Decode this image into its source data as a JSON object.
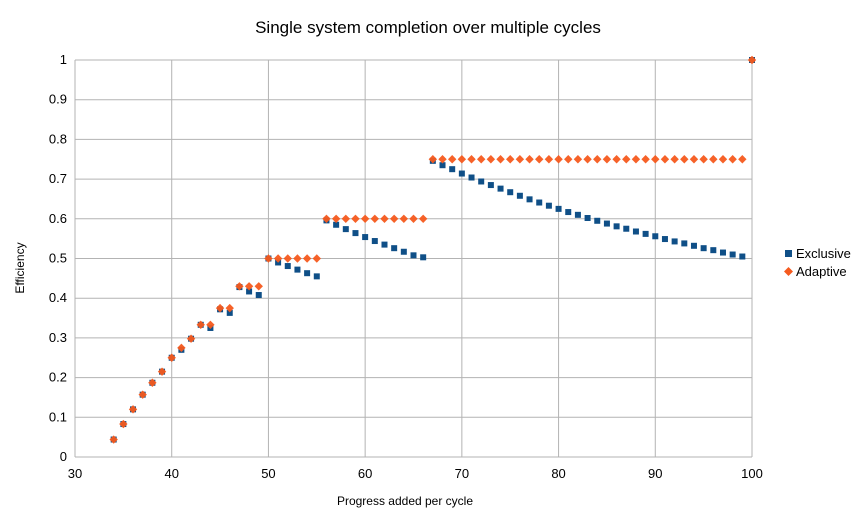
{
  "chart_data": {
    "type": "scatter",
    "title": "Single system completion over multiple cycles",
    "xlabel": "Progress added per cycle",
    "ylabel": "Efficiency",
    "xlim": [
      30,
      100
    ],
    "ylim": [
      0,
      1
    ],
    "xticks": [
      "30",
      "40",
      "50",
      "60",
      "70",
      "80",
      "90",
      "100"
    ],
    "yticks": [
      "0",
      "0.1",
      "0.2",
      "0.3",
      "0.4",
      "0.5",
      "0.6",
      "0.7",
      "0.8",
      "0.9",
      "1"
    ],
    "grid": true,
    "legend_position": "right",
    "series": [
      {
        "name": "Exclusive",
        "color": "#0f4f87",
        "marker": "square",
        "x": [
          34,
          35,
          36,
          37,
          38,
          39,
          40,
          41,
          42,
          43,
          44,
          45,
          46,
          47,
          48,
          49,
          50,
          51,
          52,
          53,
          54,
          55,
          56,
          57,
          58,
          59,
          60,
          61,
          62,
          63,
          64,
          65,
          66,
          67,
          68,
          69,
          70,
          71,
          72,
          73,
          74,
          75,
          76,
          77,
          78,
          79,
          80,
          81,
          82,
          83,
          84,
          85,
          86,
          87,
          88,
          89,
          90,
          91,
          92,
          93,
          94,
          95,
          96,
          97,
          98,
          99,
          100
        ],
        "y": [
          0.044,
          0.083,
          0.12,
          0.157,
          0.187,
          0.215,
          0.25,
          0.27,
          0.298,
          0.333,
          0.325,
          0.372,
          0.363,
          0.428,
          0.417,
          0.408,
          0.5,
          0.49,
          0.481,
          0.472,
          0.463,
          0.455,
          0.596,
          0.585,
          0.574,
          0.564,
          0.554,
          0.544,
          0.535,
          0.526,
          0.517,
          0.508,
          0.503,
          0.746,
          0.735,
          0.725,
          0.714,
          0.704,
          0.694,
          0.685,
          0.676,
          0.667,
          0.658,
          0.649,
          0.641,
          0.633,
          0.625,
          0.617,
          0.61,
          0.602,
          0.595,
          0.588,
          0.581,
          0.575,
          0.568,
          0.562,
          0.556,
          0.549,
          0.543,
          0.538,
          0.532,
          0.526,
          0.521,
          0.515,
          0.51,
          0.505,
          1.0
        ]
      },
      {
        "name": "Adaptive",
        "color": "#f55a1e",
        "marker": "diamond",
        "x": [
          34,
          35,
          36,
          37,
          38,
          39,
          40,
          41,
          42,
          43,
          44,
          45,
          46,
          47,
          48,
          49,
          50,
          51,
          52,
          53,
          54,
          55,
          56,
          57,
          58,
          59,
          60,
          61,
          62,
          63,
          64,
          65,
          66,
          67,
          68,
          69,
          70,
          71,
          72,
          73,
          74,
          75,
          76,
          77,
          78,
          79,
          80,
          81,
          82,
          83,
          84,
          85,
          86,
          87,
          88,
          89,
          90,
          91,
          92,
          93,
          94,
          95,
          96,
          97,
          98,
          99,
          100
        ],
        "y": [
          0.044,
          0.083,
          0.12,
          0.157,
          0.187,
          0.215,
          0.25,
          0.275,
          0.298,
          0.333,
          0.333,
          0.375,
          0.375,
          0.43,
          0.43,
          0.43,
          0.5,
          0.5,
          0.5,
          0.5,
          0.5,
          0.5,
          0.6,
          0.6,
          0.6,
          0.6,
          0.6,
          0.6,
          0.6,
          0.6,
          0.6,
          0.6,
          0.6,
          0.75,
          0.75,
          0.75,
          0.75,
          0.75,
          0.75,
          0.75,
          0.75,
          0.75,
          0.75,
          0.75,
          0.75,
          0.75,
          0.75,
          0.75,
          0.75,
          0.75,
          0.75,
          0.75,
          0.75,
          0.75,
          0.75,
          0.75,
          0.75,
          0.75,
          0.75,
          0.75,
          0.75,
          0.75,
          0.75,
          0.75,
          0.75,
          0.75,
          1.0
        ]
      }
    ]
  }
}
